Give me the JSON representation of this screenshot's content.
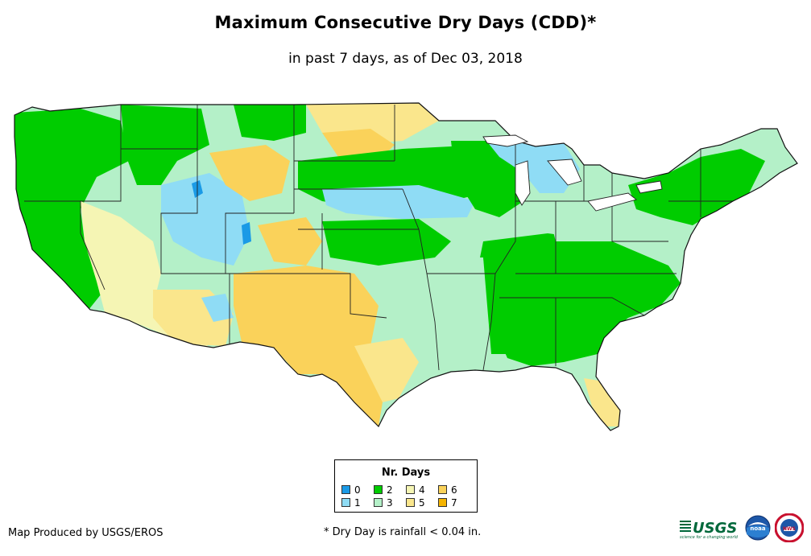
{
  "title": "Maximum Consecutive Dry Days (CDD)*",
  "subtitle": "in past 7 days, as of Dec 03, 2018",
  "legend": {
    "title": "Nr. Days",
    "items": [
      {
        "label": "0",
        "color": "#1a9ae6"
      },
      {
        "label": "1",
        "color": "#8fdcf5"
      },
      {
        "label": "2",
        "color": "#00cc00"
      },
      {
        "label": "3",
        "color": "#b4f0c8"
      },
      {
        "label": "4",
        "color": "#f5f5b4"
      },
      {
        "label": "5",
        "color": "#fae68c"
      },
      {
        "label": "6",
        "color": "#fad25a"
      },
      {
        "label": "7",
        "color": "#f5b400"
      }
    ]
  },
  "producer": "Map Produced by USGS/EROS",
  "footnote": "* Dry Day is rainfall < 0.04 in.",
  "logos": {
    "usgs": "USGS",
    "usgs_tagline": "science for a changing world",
    "noaa": "noaa",
    "nws": "NWS"
  }
}
